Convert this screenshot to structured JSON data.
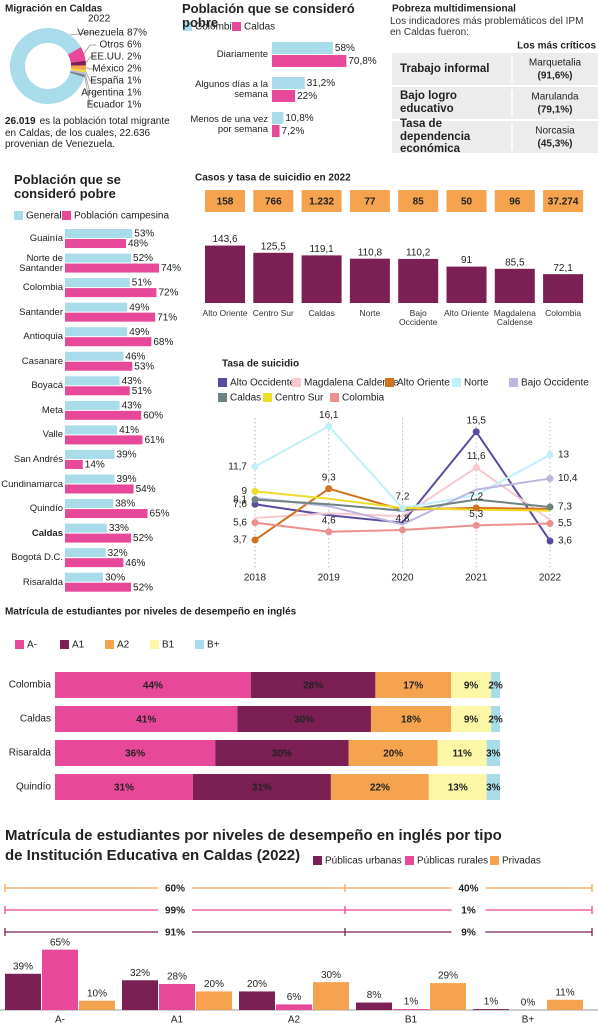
{
  "chart_data": [
    {
      "type": "donut",
      "title": "Migración en Caldas",
      "subtitle": "2022",
      "categories": [
        "Venezuela",
        "Otros",
        "EE.UU.",
        "México",
        "España",
        "Argentina",
        "Ecuador"
      ],
      "values": [
        87,
        6,
        2,
        2,
        1,
        1,
        1
      ],
      "value_labels": [
        "87%",
        "6%",
        "2%",
        "2%",
        "1%",
        "1%",
        "1%"
      ],
      "colors": [
        "#a8dcea",
        "#e8489a",
        "#7b1f54",
        "#f5a34f",
        "#eedc2a",
        "#bdb6de",
        "#6f8383"
      ],
      "note_bold": "26.019",
      "note": "es la población total migrante en Caldas, de los cuales, 22.636 provenian de Venezuela."
    },
    {
      "type": "hbar",
      "title": "Población que se consideró pobre",
      "categories": [
        "Diariamente",
        "Algunos días a la semana",
        "Menos de una vez por semana"
      ],
      "series": [
        {
          "name": "Colombia",
          "color": "#a8dcea",
          "values": [
            58,
            31.2,
            10.8
          ],
          "value_labels": [
            "58%",
            "31,2%",
            "10,8%"
          ]
        },
        {
          "name": "Caldas",
          "color": "#e8489a",
          "values": [
            70.8,
            22,
            7.2
          ],
          "value_labels": [
            "70,8%",
            "22%",
            "7,2%"
          ]
        }
      ],
      "xlim": [
        0,
        100
      ]
    },
    {
      "type": "hbar",
      "title": "Población que se consideró pobre",
      "categories": [
        "Guainía",
        "Norte de Santander",
        "Colombia",
        "Santander",
        "Antioquia",
        "Casanare",
        "Boyacá",
        "Meta",
        "Valle",
        "San Andrés",
        "Cundinamarca",
        "Quindío",
        "Caldas",
        "Bogotá D.C.",
        "Risaralda"
      ],
      "highlight_index": 12,
      "series": [
        {
          "name": "General",
          "color": "#a8dcea",
          "values": [
            53,
            52,
            51,
            49,
            49,
            46,
            43,
            43,
            41,
            39,
            39,
            38,
            33,
            32,
            30
          ],
          "value_labels": [
            "53%",
            "52%",
            "51%",
            "49%",
            "49%",
            "46%",
            "43%",
            "43%",
            "41%",
            "39%",
            "39%",
            "38%",
            "33%",
            "32%",
            "30%"
          ]
        },
        {
          "name": "Población campesina",
          "color": "#e8489a",
          "values": [
            48,
            74,
            72,
            71,
            68,
            53,
            51,
            60,
            61,
            14,
            54,
            65,
            52,
            46,
            52
          ],
          "value_labels": [
            "48%",
            "74%",
            "72%",
            "71%",
            "68%",
            "53%",
            "51%",
            "60%",
            "61%",
            "14%",
            "54%",
            "65%",
            "52%",
            "46%",
            "52%"
          ]
        }
      ],
      "xlim": [
        0,
        80
      ]
    },
    {
      "type": "bar",
      "title": "Casos y tasa de suicidio en 2022",
      "categories": [
        "Alto Oriente",
        "Centro Sur",
        "Caldas",
        "Norte",
        "Bajo Occidente",
        "Alto Oriente",
        "Magdalena Caldense",
        "Colombia"
      ],
      "cases": {
        "values": [
          158,
          766,
          1232,
          77,
          85,
          50,
          96,
          37274
        ],
        "value_labels": [
          "158",
          "766",
          "1.232",
          "77",
          "85",
          "50",
          "96",
          "37.274"
        ],
        "color": "#f5a34f"
      },
      "values": [
        143.6,
        125.5,
        119.1,
        110.8,
        110.2,
        91,
        85.5,
        72.1
      ],
      "value_labels": [
        "143,6",
        "125,5",
        "119,1",
        "110,8",
        "110,2",
        "91",
        "85,5",
        "72,1"
      ],
      "color": "#7b1f54",
      "ylim": [
        0,
        150
      ]
    },
    {
      "type": "line",
      "title": "Tasa de suicidio",
      "x": [
        2018,
        2019,
        2020,
        2021,
        2022
      ],
      "xlim": [
        2018,
        2022
      ],
      "xticks": [
        2018,
        2019,
        2020,
        2021,
        2022
      ],
      "ylim": [
        0,
        17
      ],
      "grid": true,
      "series": [
        {
          "name": "Alto Occidente",
          "color": "#5b4b9f",
          "values": [
            7.6,
            6.4,
            5.6,
            15.5,
            3.6
          ],
          "value_labels": [
            "7,6",
            null,
            null,
            "15,5",
            "3,6"
          ]
        },
        {
          "name": "Magdalena Caldense",
          "color": "#f7c9cf",
          "values": [
            6.1,
            6.6,
            6.3,
            11.6,
            5.9
          ],
          "value_labels": [
            null,
            null,
            null,
            "11,6",
            null
          ]
        },
        {
          "name": "Alto Oriente",
          "color": "#d2711e",
          "values": [
            3.7,
            9.3,
            7.0,
            7.2,
            7.1
          ],
          "value_labels": [
            "3,7",
            "9,3",
            null,
            "7,2",
            null
          ]
        },
        {
          "name": "Norte",
          "color": "#bff0f7",
          "values": [
            11.7,
            16.1,
            7.2,
            8.6,
            13
          ],
          "value_labels": [
            "11,7",
            "16,1",
            "7,2",
            null,
            "13"
          ]
        },
        {
          "name": "Bajo Occidente",
          "color": "#bdb6de",
          "values": [
            8.3,
            7.4,
            5.4,
            9.2,
            10.4
          ],
          "value_labels": [
            null,
            null,
            null,
            null,
            "10,4"
          ]
        },
        {
          "name": "Caldas",
          "color": "#6f8383",
          "values": [
            8.1,
            7.6,
            6.9,
            8.1,
            7.3
          ],
          "value_labels": [
            "8,1",
            null,
            null,
            null,
            "7,3"
          ]
        },
        {
          "name": "Centro Sur",
          "color": "#eedc2a",
          "values": [
            9,
            8.2,
            7.2,
            7.0,
            6.9
          ],
          "value_labels": [
            "9",
            null,
            null,
            null,
            null
          ]
        },
        {
          "name": "Colombia",
          "color": "#ec8f8f",
          "values": [
            5.6,
            4.6,
            4.8,
            5.3,
            5.5
          ],
          "value_labels": [
            "5,6",
            "4,6",
            "4,8",
            "5,3",
            "5,5"
          ]
        }
      ]
    },
    {
      "type": "stacked_hbar",
      "title": "Matrícula de estudiantes por niveles de desempeño en inglés",
      "categories": [
        "Colombia",
        "Caldas",
        "Risaralda",
        "Quindío"
      ],
      "xlim": [
        0,
        100
      ],
      "series": [
        {
          "name": "A-",
          "color": "#e8489a",
          "values": [
            44,
            41,
            36,
            31
          ],
          "value_labels": [
            "44%",
            "41%",
            "36%",
            "31%"
          ]
        },
        {
          "name": "A1",
          "color": "#7b1f54",
          "values": [
            28,
            30,
            30,
            31
          ],
          "value_labels": [
            "28%",
            "30%",
            "30%",
            "31%"
          ]
        },
        {
          "name": "A2",
          "color": "#f5a34f",
          "values": [
            17,
            18,
            20,
            22
          ],
          "value_labels": [
            "17%",
            "18%",
            "20%",
            "22%"
          ]
        },
        {
          "name": "B1",
          "color": "#fbf7a6",
          "values": [
            9,
            9,
            11,
            13
          ],
          "value_labels": [
            "9%",
            "9%",
            "11%",
            "13%"
          ]
        },
        {
          "name": "B+",
          "color": "#a8dcea",
          "values": [
            2,
            2,
            3,
            3
          ],
          "value_labels": [
            "2%",
            "2%",
            "3%",
            "3%"
          ]
        }
      ]
    },
    {
      "type": "grouped_bar",
      "title": "Matrícula de estudiantes por niveles de desempeño en inglés por tipo de Institución Educativa en Caldas (2022)",
      "categories": [
        "A-",
        "A1",
        "A2",
        "B1",
        "B+"
      ],
      "ylim": [
        0,
        70
      ],
      "series": [
        {
          "name": "Públicas urbanas",
          "color": "#7b1f54",
          "values": [
            39,
            32,
            20,
            8,
            1
          ],
          "value_labels": [
            "39%",
            "32%",
            "20%",
            "8%",
            "1%"
          ]
        },
        {
          "name": "Públicas rurales",
          "color": "#e8489a",
          "values": [
            65,
            28,
            6,
            1,
            0
          ],
          "value_labels": [
            "65%",
            "28%",
            "6%",
            "1%",
            "0%"
          ]
        },
        {
          "name": "Privadas",
          "color": "#f5a34f",
          "values": [
            10,
            20,
            30,
            29,
            11
          ],
          "value_labels": [
            "10%",
            "20%",
            "30%",
            "29%",
            "11%"
          ]
        }
      ],
      "splits": [
        {
          "color": "#f5a34f",
          "values": [
            60,
            40
          ],
          "value_labels": [
            "60%",
            "40%"
          ]
        },
        {
          "color": "#e8489a",
          "values": [
            99,
            1
          ],
          "value_labels": [
            "99%",
            "1%"
          ]
        },
        {
          "color": "#7b1f54",
          "values": [
            91,
            9
          ],
          "value_labels": [
            "91%",
            "9%"
          ]
        }
      ]
    }
  ],
  "ipm": {
    "title": "Pobreza multidimensional",
    "subtitle": "Los indicadores más problemáticos del IPM en Caldas fueron:",
    "column_header": "Los más críticos",
    "rows": [
      {
        "indicator": "Trabajo informal",
        "place": "Marquetalia",
        "value": "(91,6%)"
      },
      {
        "indicator": "Bajo logro educativo",
        "place": "Marulanda",
        "value": "(79,1%)"
      },
      {
        "indicator": "Tasa de dependencia económica",
        "place": "Norcasia",
        "value": "(45,3%)"
      }
    ]
  }
}
